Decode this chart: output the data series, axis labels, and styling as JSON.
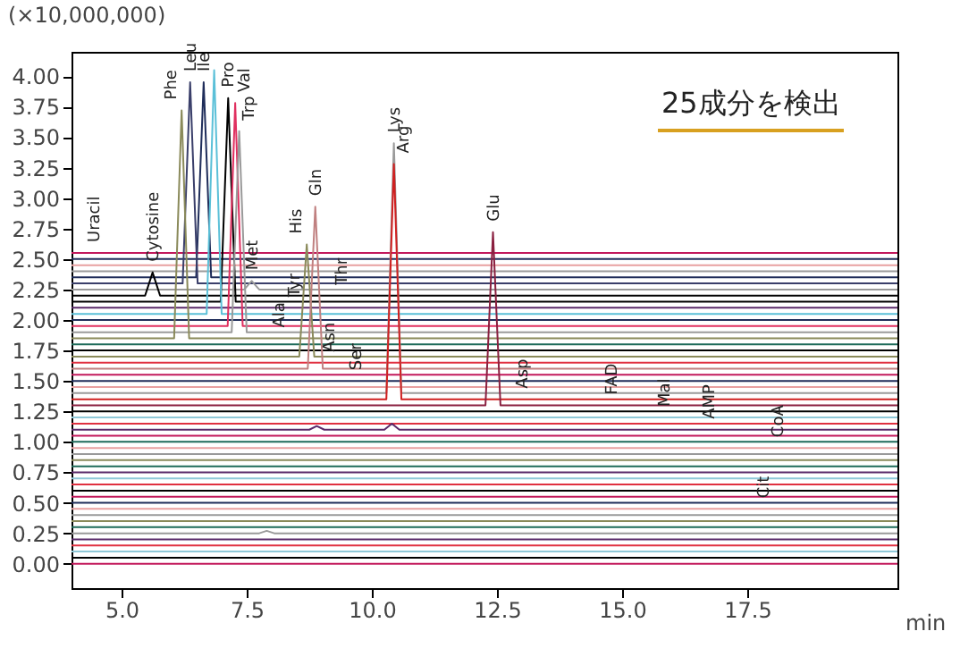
{
  "chart_data": {
    "type": "line",
    "ylabel": "(×10,000,000)",
    "xlabel": "min",
    "xlim": [
      4,
      20.5
    ],
    "ylim": [
      -0.2,
      4.2
    ],
    "xticks": [
      {
        "value": 5,
        "label": "5.0"
      },
      {
        "value": 7.5,
        "label": "7.5"
      },
      {
        "value": 10,
        "label": "10.0"
      },
      {
        "value": 12.5,
        "label": "12.5"
      },
      {
        "value": 15,
        "label": "15.0"
      },
      {
        "value": 17.5,
        "label": "17.5"
      }
    ],
    "yticks": [
      {
        "value": 0,
        "label": "0.00"
      },
      {
        "value": 0.25,
        "label": "0.25"
      },
      {
        "value": 0.5,
        "label": "0.50"
      },
      {
        "value": 0.75,
        "label": "0.75"
      },
      {
        "value": 1,
        "label": "1.00"
      },
      {
        "value": 1.25,
        "label": "1.25"
      },
      {
        "value": 1.5,
        "label": "1.50"
      },
      {
        "value": 1.75,
        "label": "1.75"
      },
      {
        "value": 2,
        "label": "2.00"
      },
      {
        "value": 2.25,
        "label": "2.25"
      },
      {
        "value": 2.5,
        "label": "2.50"
      },
      {
        "value": 2.75,
        "label": "2.75"
      },
      {
        "value": 3,
        "label": "3.00"
      },
      {
        "value": 3.25,
        "label": "3.25"
      },
      {
        "value": 3.5,
        "label": "3.50"
      },
      {
        "value": 3.75,
        "label": "3.75"
      },
      {
        "value": 4,
        "label": "4.00"
      }
    ],
    "grid": false,
    "legend": false,
    "marker": "none",
    "line_style": "solid",
    "annotations": [
      "25成分を検出",
      {
        "text": "Uracil",
        "x": 4.44,
        "y": 2.55
      },
      {
        "text": "Cytosine",
        "x": 5.62,
        "y": 2.39
      },
      {
        "text": "Phe",
        "x": 6.2,
        "y": 3.72
      },
      {
        "text": "Leu",
        "x": 6.37,
        "y": 3.95
      },
      {
        "text": "Ile",
        "x": 6.64,
        "y": 3.95
      },
      {
        "text": "Pro",
        "x": 7.13,
        "y": 3.82
      },
      {
        "text": "Val",
        "x": 7.27,
        "y": 3.78
      },
      {
        "text": "Trp",
        "x": 7.35,
        "y": 3.55
      },
      {
        "text": "Met",
        "x": 7.6,
        "y": 2.32
      },
      {
        "text": "His",
        "x": 8.7,
        "y": 2.62
      },
      {
        "text": "Gln",
        "x": 8.87,
        "y": 2.93
      },
      {
        "text": "Lys",
        "x": 10.44,
        "y": 3.45
      },
      {
        "text": "Arg",
        "x": 10.44,
        "y": 3.28
      },
      {
        "text": "Glu",
        "x": 12.42,
        "y": 2.72
      },
      {
        "text": "Ala",
        "x": 8.14,
        "y": 1.85
      },
      {
        "text": "Tyr",
        "x": 8.45,
        "y": 2.1
      },
      {
        "text": "Thr",
        "x": 9.39,
        "y": 2.2
      },
      {
        "text": "Asn",
        "x": 9.35,
        "y": 1.65
      },
      {
        "text": "Ser",
        "x": 9.67,
        "y": 1.5
      },
      {
        "text": "Asp",
        "x": 13.0,
        "y": 1.35
      },
      {
        "text": "FAD",
        "x": 14.79,
        "y": 1.3
      },
      {
        "text": "Mal",
        "x": 15.84,
        "y": 1.2
      },
      {
        "text": "AMP",
        "x": 16.74,
        "y": 1.1
      },
      {
        "text": "CoA",
        "x": 18.1,
        "y": 0.95
      },
      {
        "text": "Cit",
        "x": 18.03,
        "y": 0.45
      }
    ],
    "series": [
      {
        "color": "#c2185b",
        "x": [
          4,
          20.5
        ],
        "values": [
          2.55,
          2.55
        ]
      },
      {
        "color": "#1f2d5a",
        "x": [
          4,
          20.5
        ],
        "values": [
          2.5,
          2.5
        ]
      },
      {
        "color": "#e8a0a0",
        "x": [
          4,
          20.5
        ],
        "values": [
          2.45,
          2.45
        ]
      },
      {
        "color": "#9a9a9a",
        "x": [
          4,
          20.5
        ],
        "values": [
          2.4,
          2.4
        ]
      },
      {
        "color": "#1f2d5a",
        "x": [
          4,
          6.49,
          6.64,
          6.79,
          20.5
        ],
        "values": [
          2.35,
          2.35,
          3.95,
          2.35,
          2.35
        ]
      },
      {
        "color": "#3a3f6a",
        "x": [
          4,
          6.22,
          6.37,
          6.52,
          20.5
        ],
        "values": [
          2.3,
          2.3,
          3.95,
          2.3,
          2.3
        ]
      },
      {
        "color": "#9a9a9a",
        "x": [
          4,
          7.45,
          7.6,
          7.75,
          20.5
        ],
        "values": [
          2.25,
          2.25,
          2.32,
          2.25,
          2.25
        ]
      },
      {
        "color": "#000000",
        "x": [
          4,
          5.47,
          5.62,
          5.77,
          20.5
        ],
        "values": [
          2.2,
          2.2,
          2.39,
          2.2,
          2.2
        ]
      },
      {
        "color": "#000000",
        "x": [
          4,
          6.98,
          7.13,
          7.28,
          20.5
        ],
        "values": [
          2.15,
          2.15,
          3.82,
          2.15,
          2.15
        ]
      },
      {
        "color": "#5a2a6a",
        "x": [
          4,
          20.5
        ],
        "values": [
          2.1,
          2.1
        ]
      },
      {
        "color": "#5bc0d8",
        "x": [
          4,
          6.7,
          6.85,
          7.0,
          20.5
        ],
        "values": [
          2.05,
          2.05,
          4.05,
          2.05,
          2.05
        ]
      },
      {
        "color": "#1f2d5a",
        "x": [
          4,
          20.5
        ],
        "values": [
          2.0,
          2.0
        ]
      },
      {
        "color": "#e03060",
        "x": [
          4,
          7.12,
          7.27,
          7.42,
          20.5
        ],
        "values": [
          1.95,
          1.95,
          3.78,
          1.95,
          1.95
        ]
      },
      {
        "color": "#9a9a9a",
        "x": [
          4,
          7.2,
          7.35,
          7.5,
          20.5
        ],
        "values": [
          1.9,
          1.9,
          3.55,
          1.9,
          1.9
        ]
      },
      {
        "color": "#8a8a5a",
        "x": [
          4,
          6.05,
          6.2,
          6.35,
          20.5
        ],
        "values": [
          1.85,
          1.85,
          3.72,
          1.85,
          1.85
        ]
      },
      {
        "color": "#1e6b5a",
        "x": [
          4,
          20.5
        ],
        "values": [
          1.8,
          1.8
        ]
      },
      {
        "color": "#000000",
        "x": [
          4,
          20.5
        ],
        "values": [
          1.75,
          1.75
        ]
      },
      {
        "color": "#8a8a5a",
        "x": [
          4,
          8.55,
          8.7,
          8.85,
          20.5
        ],
        "values": [
          1.7,
          1.7,
          2.62,
          1.7,
          1.7
        ]
      },
      {
        "color": "#e03040",
        "x": [
          4,
          20.5
        ],
        "values": [
          1.65,
          1.65
        ]
      },
      {
        "color": "#c08080",
        "x": [
          4,
          8.72,
          8.87,
          9.02,
          20.5
        ],
        "values": [
          1.6,
          1.6,
          2.93,
          1.6,
          1.6
        ]
      },
      {
        "color": "#c2185b",
        "x": [
          4,
          20.5
        ],
        "values": [
          1.55,
          1.55
        ]
      },
      {
        "color": "#1f2d5a",
        "x": [
          4,
          20.5
        ],
        "values": [
          1.5,
          1.5
        ]
      },
      {
        "color": "#e8a0a0",
        "x": [
          4,
          20.5
        ],
        "values": [
          1.45,
          1.45
        ]
      },
      {
        "color": "#9a9a9a",
        "x": [
          4,
          10.29,
          10.44,
          10.59,
          20.5
        ],
        "values": [
          1.4,
          1.4,
          3.45,
          1.4,
          1.4
        ]
      },
      {
        "color": "#d02020",
        "x": [
          4,
          10.29,
          10.44,
          10.59,
          20.5
        ],
        "values": [
          1.35,
          1.35,
          3.28,
          1.35,
          1.35
        ]
      },
      {
        "color": "#8a2040",
        "x": [
          4,
          12.27,
          12.42,
          12.57,
          20.5
        ],
        "values": [
          1.3,
          1.3,
          2.72,
          1.3,
          1.3
        ]
      },
      {
        "color": "#000000",
        "x": [
          4,
          20.5
        ],
        "values": [
          1.25,
          1.25
        ]
      },
      {
        "color": "#8fc8d8",
        "x": [
          4,
          20.5
        ],
        "values": [
          1.2,
          1.2
        ]
      },
      {
        "color": "#e03040",
        "x": [
          4,
          20.5
        ],
        "values": [
          1.15,
          1.15
        ]
      },
      {
        "color": "#5a2a6a",
        "x": [
          4,
          8.75,
          8.9,
          9.05,
          10.25,
          10.4,
          10.55,
          20.5
        ],
        "values": [
          1.1,
          1.1,
          1.13,
          1.1,
          1.1,
          1.15,
          1.1,
          1.1
        ]
      },
      {
        "color": "#c2185b",
        "x": [
          4,
          20.5
        ],
        "values": [
          1.05,
          1.05
        ]
      },
      {
        "color": "#1e6b5a",
        "x": [
          4,
          20.5
        ],
        "values": [
          1.0,
          1.0
        ]
      },
      {
        "color": "#e8a0a0",
        "x": [
          4,
          20.5
        ],
        "values": [
          0.95,
          0.95
        ]
      },
      {
        "color": "#9a9a9a",
        "x": [
          4,
          20.5
        ],
        "values": [
          0.9,
          0.9
        ]
      },
      {
        "color": "#8a8a5a",
        "x": [
          4,
          20.5
        ],
        "values": [
          0.85,
          0.85
        ]
      },
      {
        "color": "#1e6b5a",
        "x": [
          4,
          20.5
        ],
        "values": [
          0.8,
          0.8
        ]
      },
      {
        "color": "#5a2a6a",
        "x": [
          4,
          20.5
        ],
        "values": [
          0.75,
          0.75
        ]
      },
      {
        "color": "#8fc8d8",
        "x": [
          4,
          20.5
        ],
        "values": [
          0.7,
          0.7
        ]
      },
      {
        "color": "#e03040",
        "x": [
          4,
          20.5
        ],
        "values": [
          0.65,
          0.65
        ]
      },
      {
        "color": "#000000",
        "x": [
          4,
          20.5
        ],
        "values": [
          0.6,
          0.6
        ]
      },
      {
        "color": "#c2185b",
        "x": [
          4,
          20.5
        ],
        "values": [
          0.55,
          0.55
        ]
      },
      {
        "color": "#1f2d5a",
        "x": [
          4,
          20.5
        ],
        "values": [
          0.5,
          0.5
        ]
      },
      {
        "color": "#e8a0a0",
        "x": [
          4,
          20.5
        ],
        "values": [
          0.45,
          0.45
        ]
      },
      {
        "color": "#9a9a9a",
        "x": [
          4,
          20.5
        ],
        "values": [
          0.4,
          0.4
        ]
      },
      {
        "color": "#8a8a5a",
        "x": [
          4,
          20.5
        ],
        "values": [
          0.35,
          0.35
        ]
      },
      {
        "color": "#1e6b5a",
        "x": [
          4,
          20.5
        ],
        "values": [
          0.3,
          0.3
        ]
      },
      {
        "color": "#9a9a9a",
        "x": [
          4,
          7.75,
          7.9,
          8.05,
          20.5
        ],
        "values": [
          0.25,
          0.25,
          0.27,
          0.25,
          0.25
        ]
      },
      {
        "color": "#5a2a6a",
        "x": [
          4,
          20.5
        ],
        "values": [
          0.2,
          0.2
        ]
      },
      {
        "color": "#e03040",
        "x": [
          4,
          20.5
        ],
        "values": [
          0.15,
          0.15
        ]
      },
      {
        "color": "#8fc8d8",
        "x": [
          4,
          20.5
        ],
        "values": [
          0.1,
          0.1
        ]
      },
      {
        "color": "#000000",
        "x": [
          4,
          20.5
        ],
        "values": [
          0.05,
          0.05
        ]
      },
      {
        "color": "#c2185b",
        "x": [
          4,
          20.5
        ],
        "values": [
          0.0,
          0.0
        ]
      }
    ]
  }
}
